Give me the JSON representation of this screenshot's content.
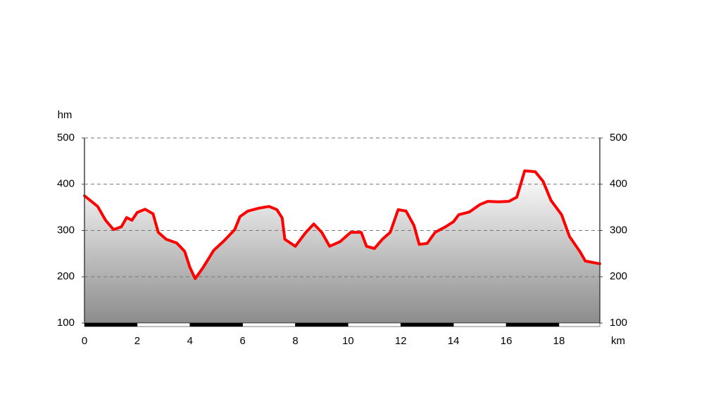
{
  "chart_data": {
    "type": "area",
    "y_label": "hm",
    "x_label": "km",
    "x": [
      0,
      0.5,
      0.8,
      1.1,
      1.4,
      1.6,
      1.8,
      2.0,
      2.3,
      2.6,
      2.8,
      3.1,
      3.5,
      3.8,
      4.0,
      4.2,
      4.5,
      4.9,
      5.3,
      5.7,
      5.9,
      6.2,
      6.6,
      7.0,
      7.3,
      7.5,
      7.6,
      8.0,
      8.4,
      8.7,
      9.0,
      9.3,
      9.7,
      10.1,
      10.5,
      10.7,
      11.0,
      11.3,
      11.6,
      11.9,
      12.2,
      12.5,
      12.7,
      13.0,
      13.3,
      13.7,
      14.0,
      14.2,
      14.6,
      15.0,
      15.3,
      15.7,
      16.1,
      16.4,
      16.7,
      17.1,
      17.4,
      17.7,
      18.1,
      18.4,
      18.8,
      19.0,
      19.55
    ],
    "series": [
      {
        "color": "#ff0000",
        "values": [
          375,
          352,
          322,
          302,
          308,
          328,
          322,
          339,
          346,
          336,
          296,
          281,
          273,
          255,
          220,
          196,
          220,
          257,
          278,
          302,
          330,
          342,
          348,
          352,
          345,
          327,
          281,
          266,
          296,
          314,
          296,
          266,
          276,
          296,
          296,
          266,
          261,
          281,
          296,
          345,
          342,
          311,
          270,
          272,
          296,
          308,
          319,
          334,
          340,
          356,
          363,
          362,
          363,
          372,
          429,
          427,
          406,
          365,
          334,
          287,
          254,
          234,
          228
        ]
      }
    ],
    "xlim": [
      0,
      19.55
    ],
    "xticks": [
      0,
      2,
      4,
      6,
      8,
      10,
      12,
      14,
      16,
      18
    ],
    "ylim": [
      100,
      500
    ],
    "yticks": [
      100,
      200,
      300,
      400,
      500
    ],
    "y2lim": [
      100,
      500
    ],
    "y2ticks": [
      100,
      200,
      300,
      400,
      500
    ],
    "grid": true
  }
}
